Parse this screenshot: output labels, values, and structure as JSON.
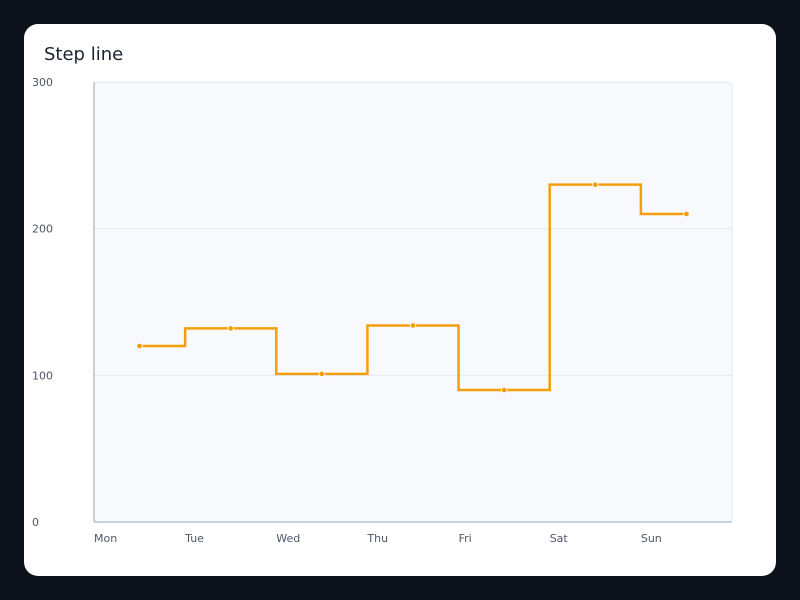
{
  "chart_data": {
    "type": "line",
    "step": true,
    "title": "Step line",
    "xlabel": "",
    "ylabel": "",
    "categories": [
      "Mon",
      "Tue",
      "Wed",
      "Thu",
      "Fri",
      "Sat",
      "Sun"
    ],
    "series": [
      {
        "values": [
          120,
          132,
          101,
          134,
          90,
          230,
          210
        ],
        "color": "#f59e0b"
      }
    ],
    "ylim": [
      0,
      300
    ],
    "yticks": [
      0,
      100,
      200,
      300
    ],
    "grid": true,
    "legend": "none",
    "colors": {
      "plot_background": "#f8f9fd",
      "grid": "#e3e7ef",
      "axis": "#b8c3d8"
    }
  }
}
